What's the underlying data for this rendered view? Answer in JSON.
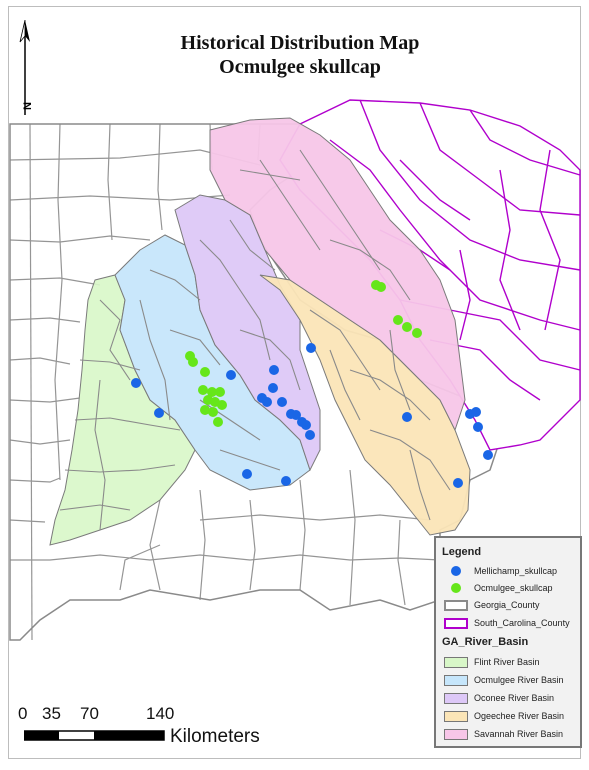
{
  "title": {
    "line1": "Historical Distribution Map",
    "line2": "Ocmulgee skullcap"
  },
  "north_arrow": {
    "label": "N"
  },
  "colors": {
    "county_outline": "#8a8a8a",
    "sc_county_outline": "#b000cc",
    "mellichamp_point": "#1a66e6",
    "ocmulgee_point": "#66e61a",
    "flint": "#d8f7c8",
    "ocmulgee": "#c6e6fb",
    "oconee": "#ddc8f7",
    "ogeechee": "#fbe5b7",
    "savannah": "#f7c6e8"
  },
  "legend": {
    "title": "Legend",
    "items": [
      {
        "label": "Mellichamp_skullcap",
        "symbol": "blue-dot"
      },
      {
        "label": "Ocmulgee_skullcap",
        "symbol": "green-dot"
      },
      {
        "label": "Georgia_County",
        "symbol": "gray-box"
      },
      {
        "label": "South_Carolina_County",
        "symbol": "purple-box"
      }
    ],
    "basin_heading": "GA_River_Basin",
    "basins": [
      {
        "label": "Flint River Basin",
        "key": "flint"
      },
      {
        "label": "Ocmulgee River Basin",
        "key": "ocmulgee"
      },
      {
        "label": "Oconee River Basin",
        "key": "oconee"
      },
      {
        "label": "Ogeechee River Basin",
        "key": "ogeechee"
      },
      {
        "label": "Savannah River Basin",
        "key": "savannah"
      }
    ]
  },
  "scale_bar": {
    "ticks": [
      "0",
      "35",
      "70",
      "140"
    ],
    "unit": "Kilometers"
  }
}
